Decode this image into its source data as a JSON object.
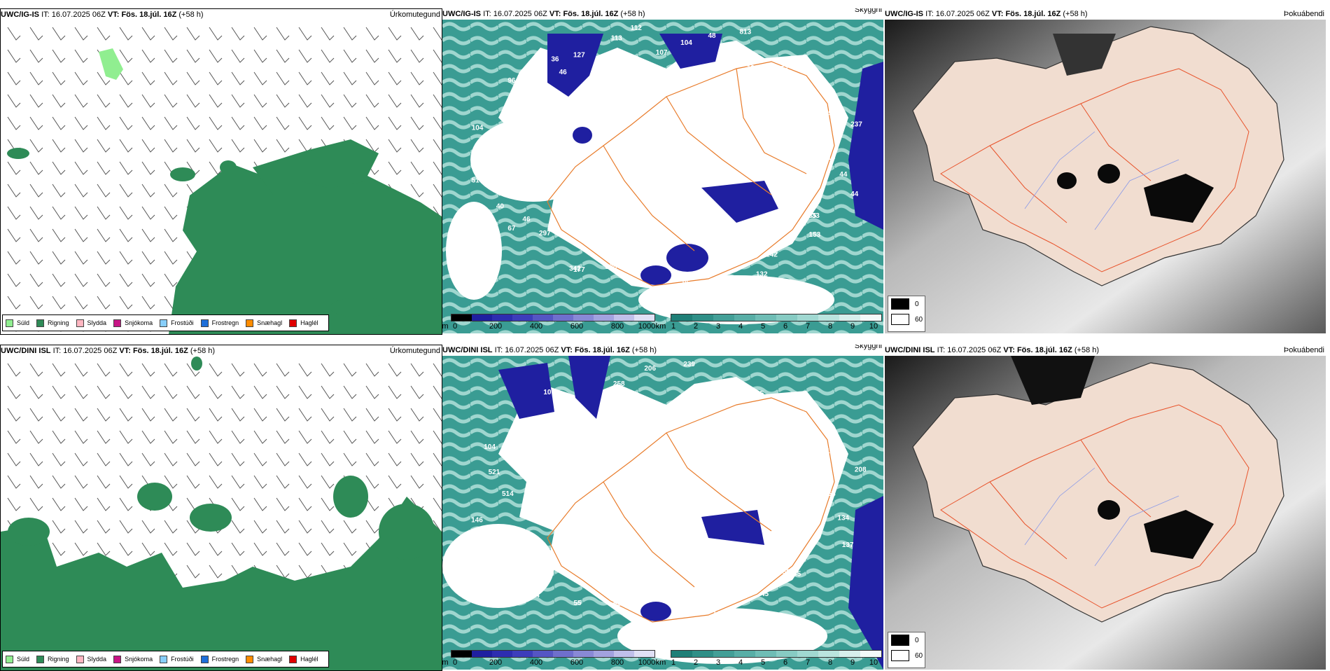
{
  "panels": [
    {
      "model": "UWC/IG-IS",
      "it_label": "IT:",
      "it_value": "16.07.2025 06Z",
      "vt_label": "VT:",
      "vt_value": "Fös. 18.júl. 16Z",
      "step": "(+58 h)",
      "product": "Úrkomutegund"
    },
    {
      "model": "UWC/IG-IS",
      "it_label": "IT:",
      "it_value": "16.07.2025 06Z",
      "vt_label": "VT:",
      "vt_value": "Fös. 18.júl. 16Z",
      "step": "(+58 h)",
      "product": "Skyggni"
    },
    {
      "model": "UWC/IG-IS",
      "it_label": "IT:",
      "it_value": "16.07.2025 06Z",
      "vt_label": "VT:",
      "vt_value": "Fös. 18.júl. 16Z",
      "step": "(+58 h)",
      "product": "Þokuábendi"
    },
    {
      "model": "UWC/DINI ISL",
      "it_label": "IT:",
      "it_value": "16.07.2025 06Z",
      "vt_label": "VT:",
      "vt_value": "Fös. 18.júl. 16Z",
      "step": "(+58 h)",
      "product": "Úrkomutegund"
    },
    {
      "model": "UWC/DINI ISL",
      "it_label": "IT:",
      "it_value": "16.07.2025 06Z",
      "vt_label": "VT:",
      "vt_value": "Fös. 18.júl. 16Z",
      "step": "(+58 h)",
      "product": "Skyggni"
    },
    {
      "model": "UWC/DINI ISL",
      "it_label": "IT:",
      "it_value": "16.07.2025 06Z",
      "vt_label": "VT:",
      "vt_value": "Fös. 18.júl. 16Z",
      "step": "(+58 h)",
      "product": "Þokuábendi"
    }
  ],
  "precip_legend": [
    {
      "label": "Súld",
      "color": "#90ee90"
    },
    {
      "label": "Rigning",
      "color": "#2e8b57"
    },
    {
      "label": "Slydda",
      "color": "#ffb6c1"
    },
    {
      "label": "Snjókoma",
      "color": "#c71585"
    },
    {
      "label": "Frostúði",
      "color": "#87cefa"
    },
    {
      "label": "Frostregn",
      "color": "#1e6fd9"
    },
    {
      "label": "Snæhagl",
      "color": "#ff8c00"
    },
    {
      "label": "Haglél",
      "color": "#e00000"
    }
  ],
  "cloud_base_scale": {
    "unit": "m",
    "ticks": [
      "0",
      "200",
      "400",
      "600",
      "800",
      "1000"
    ]
  },
  "visibility_scale": {
    "unit": "km",
    "ticks": [
      "1",
      "2",
      "3",
      "4",
      "5",
      "6",
      "7",
      "8",
      "9",
      "10"
    ]
  },
  "fog_legend": [
    {
      "label": "0",
      "color": "#000000"
    },
    {
      "label": "60",
      "color": "#ffffff"
    }
  ],
  "labels_top": [
    "115",
    "44",
    "44",
    "35",
    "33",
    "153",
    "142",
    "132",
    "101",
    "106",
    "95",
    "59",
    "147",
    "325",
    "177",
    "342",
    "297",
    "67",
    "46",
    "40",
    "51",
    "18",
    "65",
    "104",
    "74",
    "67",
    "96",
    "36",
    "46",
    "127",
    "113",
    "112",
    "107",
    "104",
    "48",
    "813",
    "131",
    "251",
    "69",
    "97",
    "99",
    "237",
    "41"
  ],
  "labels_bottom": [
    "153",
    "134",
    "137",
    "45",
    "50",
    "45",
    "144",
    "11",
    "55",
    "53",
    "55",
    "74",
    "86",
    "194",
    "146",
    "514",
    "521",
    "104",
    "311",
    "107",
    "164",
    "258",
    "206",
    "239",
    "35",
    "205",
    "119",
    "139",
    "10",
    "208"
  ],
  "colors": {
    "rain": "#2e8b57",
    "drizzle": "#90ee90",
    "ceiling": "#1f1fa0",
    "vis_low": "#2f8f87",
    "vis_high": "#d7efec",
    "road": "#e87b2a",
    "fog_land": "#f1ddd0"
  }
}
